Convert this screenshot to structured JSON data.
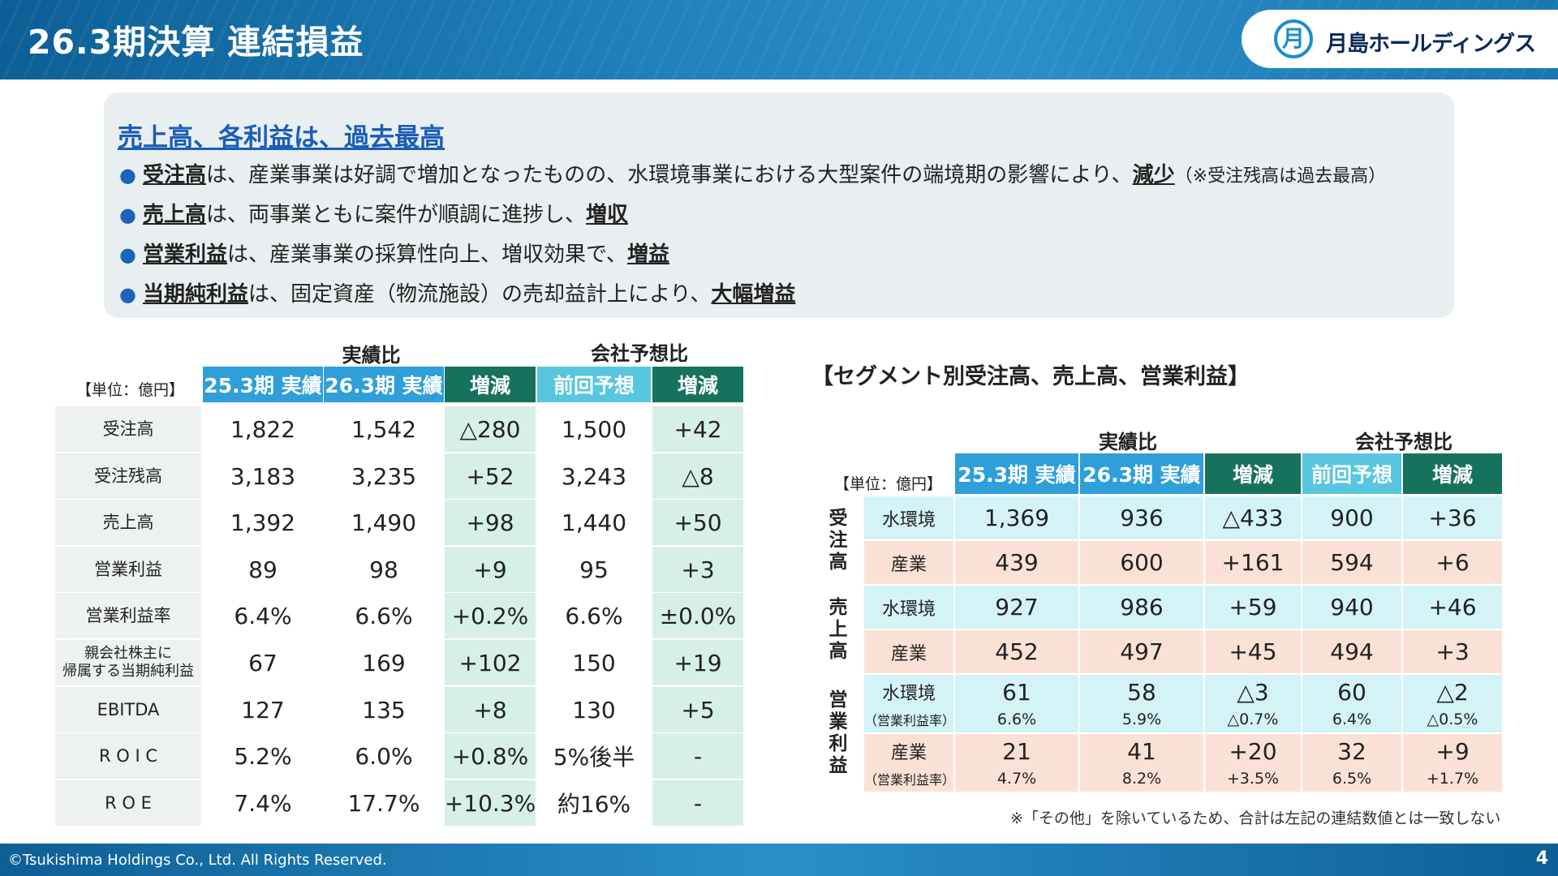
{
  "header": {
    "title": "26.3期決算 連結損益",
    "company": "月島ホールディングス"
  },
  "summary": {
    "heading": "売上高、各利益は、過去最高",
    "bullets": [
      {
        "strong": "受注高",
        "text": "は、産業事業は好調で増加となったものの、水環境事業における大型案件の端境期の影響により、",
        "strong2": "減少",
        "note": "（※受注残高は過去最高）"
      },
      {
        "strong": "売上高",
        "text": "は、両事業ともに案件が順調に進捗し、",
        "strong2": "増収",
        "note": ""
      },
      {
        "strong": "営業利益",
        "text": "は、産業事業の採算性向上、増収効果で、",
        "strong2": "増益",
        "note": ""
      },
      {
        "strong": "当期純利益",
        "text": "は、固定資産（物流施設）の売却益計上により、",
        "strong2": "大幅増益",
        "note": ""
      }
    ]
  },
  "left_table": {
    "group_actual": "実績比",
    "group_forecast": "会社予想比",
    "unit": "【単位：億円】",
    "headers": [
      "25.3期 実績",
      "26.3期 実績",
      "増減",
      "前回予想",
      "増減"
    ],
    "rows": [
      {
        "label": "受注高",
        "values": [
          "1,822",
          "1,542",
          "△280",
          "1,500",
          "+42"
        ]
      },
      {
        "label": "受注残高",
        "values": [
          "3,183",
          "3,235",
          "+52",
          "3,243",
          "△8"
        ]
      },
      {
        "label": "売上高",
        "values": [
          "1,392",
          "1,490",
          "+98",
          "1,440",
          "+50"
        ]
      },
      {
        "label": "営業利益",
        "values": [
          "89",
          "98",
          "+9",
          "95",
          "+3"
        ]
      },
      {
        "label": "営業利益率",
        "values": [
          "6.4%",
          "6.6%",
          "+0.2%",
          "6.6%",
          "±0.0%"
        ]
      },
      {
        "label": "親会社株主に\n帰属する当期純利益",
        "values": [
          "67",
          "169",
          "+102",
          "150",
          "+19"
        ]
      },
      {
        "label": "EBITDA",
        "values": [
          "127",
          "135",
          "+8",
          "130",
          "+5"
        ]
      },
      {
        "label": "R O I C",
        "values": [
          "5.2%",
          "6.0%",
          "+0.8%",
          "5%後半",
          "-"
        ]
      },
      {
        "label": "R O E",
        "values": [
          "7.4%",
          "17.7%",
          "+10.3%",
          "約16%",
          "-"
        ]
      }
    ]
  },
  "segment_table": {
    "title": "【セグメント別受注高、売上高、営業利益】",
    "group_actual": "実績比",
    "group_forecast": "会社予想比",
    "unit": "【単位：億円】",
    "headers": [
      "25.3期 実績",
      "26.3期 実績",
      "増減",
      "前回予想",
      "増減"
    ],
    "groups": [
      {
        "label": "受\n注\n高",
        "rows": [
          {
            "label": "水環境",
            "sub": "",
            "values": [
              "1,369",
              "936",
              "△433",
              "900",
              "+36"
            ],
            "subs": []
          },
          {
            "label": "産業",
            "sub": "",
            "values": [
              "439",
              "600",
              "+161",
              "594",
              "+6"
            ],
            "subs": []
          }
        ]
      },
      {
        "label": "売\n上\n高",
        "rows": [
          {
            "label": "水環境",
            "sub": "",
            "values": [
              "927",
              "986",
              "+59",
              "940",
              "+46"
            ],
            "subs": []
          },
          {
            "label": "産業",
            "sub": "",
            "values": [
              "452",
              "497",
              "+45",
              "494",
              "+3"
            ],
            "subs": []
          }
        ]
      },
      {
        "label": "営\n業\n利\n益",
        "rows": [
          {
            "label": "水環境",
            "sub": "（営業利益率）",
            "values": [
              "61",
              "58",
              "△3",
              "60",
              "△2"
            ],
            "subs": [
              "6.6%",
              "5.9%",
              "△0.7%",
              "6.4%",
              "△0.5%"
            ]
          },
          {
            "label": "産業",
            "sub": "（営業利益率）",
            "values": [
              "21",
              "41",
              "+20",
              "32",
              "+9"
            ],
            "subs": [
              "4.7%",
              "8.2%",
              "+3.5%",
              "6.5%",
              "+1.7%"
            ]
          }
        ]
      }
    ],
    "footnote": "※「その他」を除いているため、合計は左記の連結数値とは一致しない"
  },
  "footer": {
    "copyright": "©Tsukishima Holdings Co., Ltd. All Rights Reserved.",
    "page": "4"
  }
}
